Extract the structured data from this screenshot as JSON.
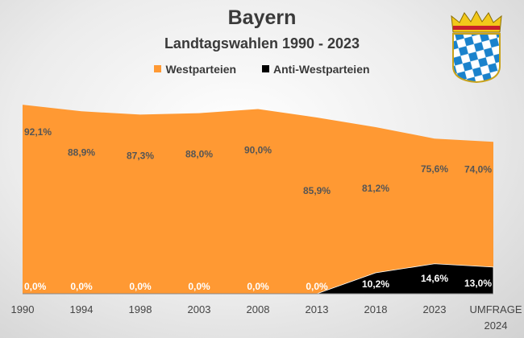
{
  "chart_data": {
    "type": "area",
    "title": "Bayern",
    "subtitle": "Landtagswahlen 1990 - 2023",
    "categories": [
      "1990",
      "1994",
      "1998",
      "2003",
      "2008",
      "2013",
      "2018",
      "2023",
      "UMFRAGE 2024"
    ],
    "category_lines": [
      [
        "1990"
      ],
      [
        "1994"
      ],
      [
        "1998"
      ],
      [
        "2003"
      ],
      [
        "2008"
      ],
      [
        "2013"
      ],
      [
        "2018"
      ],
      [
        "2023"
      ],
      [
        "UMFRAGE",
        "2024"
      ]
    ],
    "series": [
      {
        "name": "Westparteien",
        "color": "#FF9933",
        "values": [
          92.1,
          88.9,
          87.3,
          88.0,
          90.0,
          85.9,
          81.2,
          75.6,
          74.0
        ],
        "labels": [
          "92,1%",
          "88,9%",
          "87,3%",
          "88,0%",
          "90,0%",
          "85,9%",
          "81,2%",
          "75,6%",
          "74,0%"
        ]
      },
      {
        "name": "Anti-Westparteien",
        "color": "#000000",
        "values": [
          0,
          0,
          0,
          0,
          0,
          0,
          10.2,
          14.6,
          13.0
        ],
        "labels": [
          "0,0%",
          "0,0%",
          "0,0%",
          "0,0%",
          "0,0%",
          "0,0%",
          "10,2%",
          "14,6%",
          "13,0%"
        ]
      }
    ],
    "legend_position": "top",
    "ylim": [
      0,
      100
    ],
    "grid": false
  }
}
